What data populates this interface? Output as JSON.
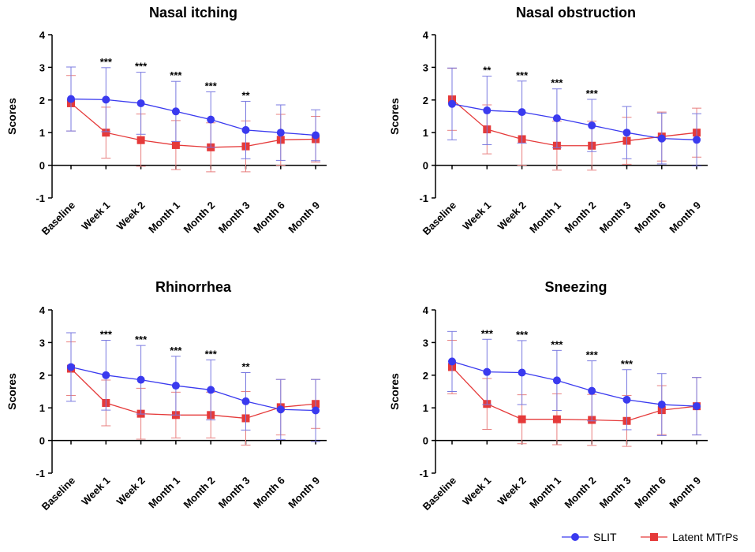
{
  "colors": {
    "slit": "#3a3aef",
    "slit_err": "#7a7ae0",
    "mtrps": "#e53a3a",
    "mtrps_err": "#e88080",
    "axis": "#000000"
  },
  "legend": {
    "series1": "SLIT",
    "series2": "Latent MTrPs"
  },
  "chart_data": [
    {
      "type": "line",
      "title": "Nasal itching",
      "ylabel": "Scores",
      "ylim": [
        -1,
        4
      ],
      "yticks": [
        "-1",
        "0",
        "1",
        "2",
        "3",
        "4"
      ],
      "categories": [
        "Baseline",
        "Week 1",
        "Week 2",
        "Month 1",
        "Month 2",
        "Month 3",
        "Month 6",
        "Month 9"
      ],
      "series": [
        {
          "name": "SLIT",
          "values": [
            2.03,
            2.01,
            1.9,
            1.65,
            1.4,
            1.08,
            1.0,
            0.92
          ],
          "err": [
            0.98,
            0.98,
            0.95,
            0.92,
            0.85,
            0.88,
            0.85,
            0.78
          ]
        },
        {
          "name": "Latent MTrPs",
          "values": [
            1.9,
            1.0,
            0.77,
            0.62,
            0.55,
            0.58,
            0.78,
            0.8
          ],
          "err": [
            0.85,
            0.78,
            0.8,
            0.75,
            0.75,
            0.78,
            0.78,
            0.7
          ]
        }
      ],
      "significance": [
        "",
        "***",
        "***",
        "***",
        "***",
        "**",
        "",
        ""
      ]
    },
    {
      "type": "line",
      "title": "Nasal obstruction",
      "ylabel": "Scores",
      "ylim": [
        -1,
        4
      ],
      "yticks": [
        "-1",
        "0",
        "1",
        "2",
        "3",
        "4"
      ],
      "categories": [
        "Baseline",
        "Week 1",
        "Week 2",
        "Month 1",
        "Month 2",
        "Month 3",
        "Month 6",
        "Month 9"
      ],
      "series": [
        {
          "name": "SLIT",
          "values": [
            1.88,
            1.68,
            1.63,
            1.44,
            1.22,
            1.0,
            0.82,
            0.78
          ],
          "err": [
            1.1,
            1.05,
            0.95,
            0.9,
            0.8,
            0.8,
            0.78,
            0.8
          ]
        },
        {
          "name": "Latent MTrPs",
          "values": [
            2.02,
            1.1,
            0.8,
            0.6,
            0.6,
            0.75,
            0.88,
            1.0
          ],
          "err": [
            0.95,
            0.75,
            0.8,
            0.75,
            0.75,
            0.72,
            0.75,
            0.75
          ]
        }
      ],
      "significance": [
        "",
        "**",
        "***",
        "***",
        "***",
        "",
        "",
        ""
      ]
    },
    {
      "type": "line",
      "title": "Rhinorrhea",
      "ylabel": "Scores",
      "ylim": [
        -1,
        4
      ],
      "yticks": [
        "-1",
        "0",
        "1",
        "2",
        "3",
        "4"
      ],
      "categories": [
        "Baseline",
        "Week 1",
        "Week 2",
        "Month 1",
        "Month 2",
        "Month 3",
        "Month 6",
        "Month 9"
      ],
      "series": [
        {
          "name": "SLIT",
          "values": [
            2.25,
            2.0,
            1.86,
            1.68,
            1.55,
            1.2,
            0.95,
            0.92
          ],
          "err": [
            1.05,
            1.07,
            1.05,
            0.9,
            0.92,
            0.88,
            0.92,
            0.95
          ]
        },
        {
          "name": "Latent MTrPs",
          "values": [
            2.2,
            1.15,
            0.82,
            0.78,
            0.78,
            0.68,
            1.02,
            1.12
          ],
          "err": [
            0.82,
            0.7,
            0.78,
            0.7,
            0.7,
            0.82,
            0.85,
            0.75
          ]
        }
      ],
      "significance": [
        "",
        "***",
        "***",
        "***",
        "***",
        "**",
        "",
        ""
      ]
    },
    {
      "type": "line",
      "title": "Sneezing",
      "ylabel": "Scores",
      "ylim": [
        -1,
        4
      ],
      "yticks": [
        "-1",
        "0",
        "1",
        "2",
        "3",
        "4"
      ],
      "categories": [
        "Baseline",
        "Week 1",
        "Week 2",
        "Month 1",
        "Month 2",
        "Month 3",
        "Month 6",
        "Month 9"
      ],
      "series": [
        {
          "name": "SLIT",
          "values": [
            2.42,
            2.1,
            2.08,
            1.84,
            1.52,
            1.25,
            1.1,
            1.05
          ],
          "err": [
            0.92,
            1.0,
            0.98,
            0.92,
            0.92,
            0.92,
            0.95,
            0.88
          ]
        },
        {
          "name": "Latent MTrPs",
          "values": [
            2.25,
            1.12,
            0.65,
            0.65,
            0.63,
            0.6,
            0.93,
            1.05
          ],
          "err": [
            0.82,
            0.78,
            0.75,
            0.78,
            0.78,
            0.78,
            0.75,
            0.88
          ]
        }
      ],
      "significance": [
        "",
        "***",
        "***",
        "***",
        "***",
        "***",
        "",
        ""
      ]
    }
  ]
}
